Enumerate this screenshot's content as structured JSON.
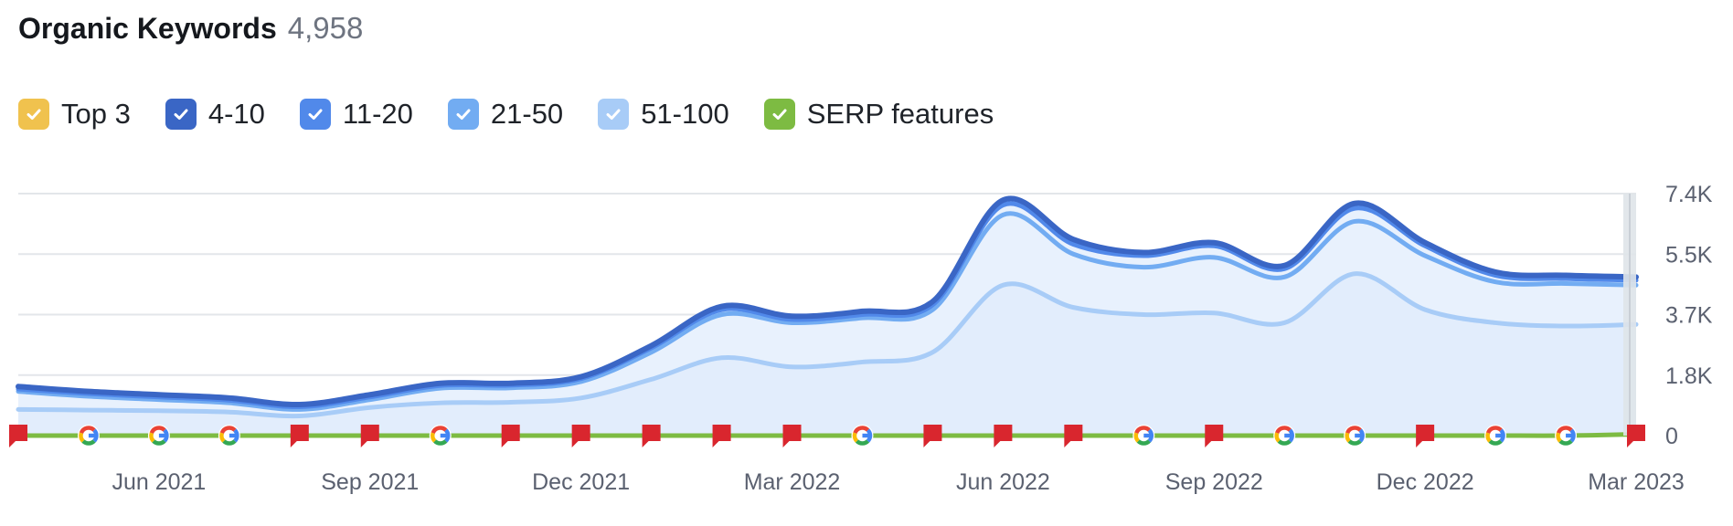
{
  "header": {
    "title": "Organic Keywords",
    "count": "4,958"
  },
  "legend": [
    {
      "label": "Top 3",
      "color": "#f0c24e"
    },
    {
      "label": "4-10",
      "color": "#3a66c5"
    },
    {
      "label": "11-20",
      "color": "#5189ea"
    },
    {
      "label": "21-50",
      "color": "#72acf2"
    },
    {
      "label": "51-100",
      "color": "#a8ccf7"
    },
    {
      "label": "SERP features",
      "color": "#7dbb42"
    }
  ],
  "chart_data": {
    "type": "area",
    "title": "Organic Keywords",
    "xlabel": "",
    "ylabel": "",
    "x_ticks": [
      "Jun 2021",
      "Sep 2021",
      "Dec 2021",
      "Mar 2022",
      "Jun 2022",
      "Sep 2022",
      "Dec 2022",
      "Mar 2023"
    ],
    "y_ticks": [
      "7.4K",
      "5.5K",
      "3.7K",
      "1.8K",
      "0"
    ],
    "ylim": [
      0,
      7400
    ],
    "x_range": [
      "2021-04",
      "2023-03"
    ],
    "grid": true,
    "legend_position": "top-left",
    "x": [
      "2021-04",
      "2021-05",
      "2021-06",
      "2021-07",
      "2021-08",
      "2021-09",
      "2021-10",
      "2021-11",
      "2021-12",
      "2022-01",
      "2022-02",
      "2022-03",
      "2022-04",
      "2022-05",
      "2022-06",
      "2022-07",
      "2022-08",
      "2022-09",
      "2022-10",
      "2022-11",
      "2022-12",
      "2023-01",
      "2023-02",
      "2023-03"
    ],
    "series": [
      {
        "name": "4-10",
        "color": "#3a66c5",
        "values": [
          1500,
          1350,
          1250,
          1150,
          950,
          1250,
          1600,
          1600,
          1800,
          2750,
          3950,
          3650,
          3800,
          4100,
          7200,
          6000,
          5600,
          5900,
          5200,
          7100,
          5900,
          5000,
          4900,
          4850
        ]
      },
      {
        "name": "11-20",
        "color": "#5189ea",
        "values": [
          1420,
          1280,
          1180,
          1080,
          880,
          1180,
          1530,
          1540,
          1740,
          2680,
          3850,
          3550,
          3700,
          4000,
          7050,
          5850,
          5500,
          5800,
          5100,
          6950,
          5800,
          4900,
          4800,
          4750
        ]
      },
      {
        "name": "21-50",
        "color": "#72acf2",
        "values": [
          1350,
          1200,
          1100,
          1000,
          800,
          1100,
          1450,
          1460,
          1650,
          2550,
          3700,
          3450,
          3600,
          3850,
          6750,
          5550,
          5150,
          5450,
          4850,
          6550,
          5500,
          4700,
          4650,
          4600
        ]
      },
      {
        "name": "51-100",
        "color": "#a8ccf7",
        "values": [
          800,
          780,
          760,
          720,
          600,
          860,
          1000,
          1020,
          1150,
          1720,
          2380,
          2100,
          2250,
          2550,
          4600,
          3920,
          3700,
          3750,
          3450,
          4950,
          3850,
          3450,
          3350,
          3400
        ]
      },
      {
        "name": "SERP features",
        "color": "#7dbb42",
        "values": [
          0,
          0,
          0,
          0,
          0,
          0,
          0,
          0,
          0,
          0,
          0,
          0,
          0,
          0,
          0,
          0,
          0,
          0,
          0,
          0,
          0,
          0,
          0,
          40
        ]
      }
    ],
    "markers": [
      "flag",
      "google",
      "google",
      "google",
      "flag",
      "flag",
      "google",
      "flag",
      "flag",
      "flag",
      "flag",
      "flag",
      "google",
      "flag",
      "flag",
      "flag",
      "google",
      "flag",
      "google",
      "google",
      "flag",
      "google",
      "google",
      "flag"
    ]
  }
}
